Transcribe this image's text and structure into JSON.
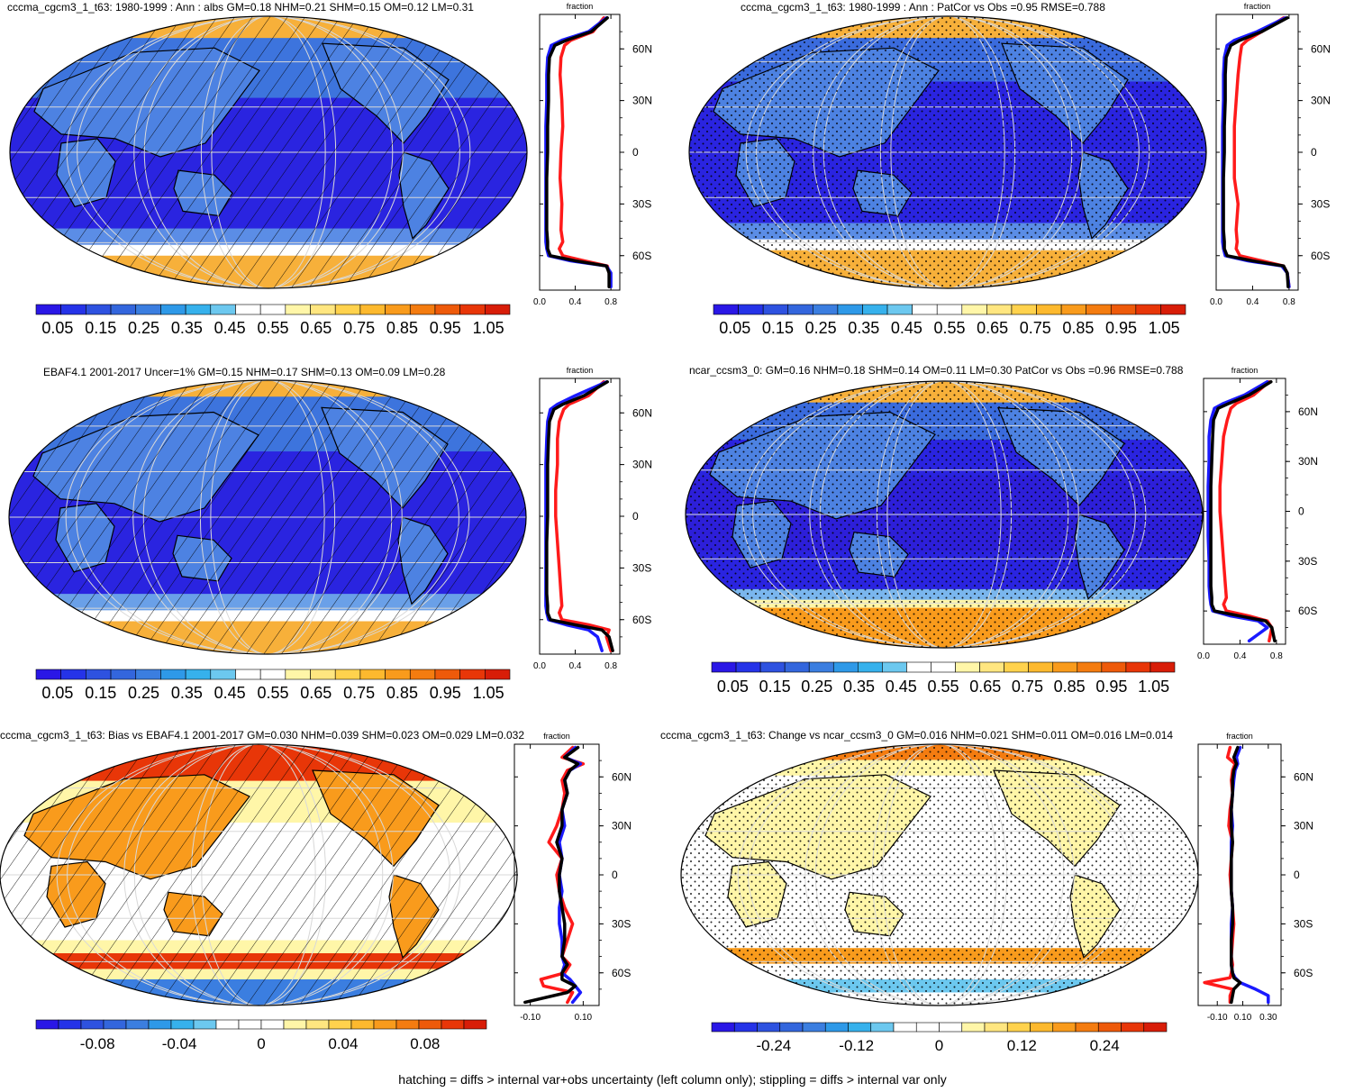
{
  "footer": "hatching = diffs > internal var+obs uncertainty (left column only); stippling = diffs > internal var only",
  "chart_data": [
    {
      "type": "heatmap",
      "title": "cccma_cgcm3_1_t63: 1980-1999 : Ann : albs GM=0.18 NHM=0.21 SHM=0.15 OM=0.12 LM=0.31",
      "pattern": "hatch",
      "colorbar": {
        "labels": [
          "0.05",
          "0.15",
          "0.25",
          "0.35",
          "0.45",
          "0.55",
          "0.65",
          "0.75",
          "0.85",
          "0.95",
          "1.05"
        ],
        "min": 0.0,
        "max": 1.1,
        "palette": "seq"
      },
      "zonal": {
        "xlabel": "fraction",
        "xticks": [
          {
            "v": 0.0,
            "l": "0.0"
          },
          {
            "v": 0.4,
            "l": "0.4"
          },
          {
            "v": 0.8,
            "l": "0.8"
          }
        ],
        "xlim": [
          0.0,
          0.9
        ],
        "yticks": [
          {
            "v": 60,
            "l": "60N"
          },
          {
            "v": 30,
            "l": "30N"
          },
          {
            "v": 0,
            "l": "0"
          },
          {
            "v": -30,
            "l": "30S"
          },
          {
            "v": -60,
            "l": "60S"
          }
        ],
        "ylim": [
          -80,
          80
        ],
        "lat": [
          78,
          70,
          65,
          62,
          55,
          45,
          30,
          15,
          0,
          -15,
          -30,
          -45,
          -52,
          -56,
          -60,
          -63,
          -66,
          -70,
          -78
        ],
        "series": [
          {
            "color": "#ff1a1a",
            "values": [
              0.72,
              0.6,
              0.35,
              0.28,
              0.24,
              0.23,
              0.25,
              0.26,
              0.24,
              0.23,
              0.25,
              0.24,
              0.26,
              0.22,
              0.26,
              0.5,
              0.76,
              0.78,
              0.79
            ]
          },
          {
            "color": "#1a1aff",
            "values": [
              0.75,
              0.55,
              0.25,
              0.13,
              0.09,
              0.08,
              0.08,
              0.07,
              0.07,
              0.07,
              0.07,
              0.07,
              0.07,
              0.08,
              0.1,
              0.35,
              0.75,
              0.8,
              0.8
            ]
          },
          {
            "color": "#000000",
            "values": [
              0.76,
              0.58,
              0.3,
              0.17,
              0.11,
              0.1,
              0.1,
              0.09,
              0.09,
              0.08,
              0.08,
              0.08,
              0.09,
              0.09,
              0.12,
              0.4,
              0.75,
              0.78,
              0.78
            ]
          }
        ]
      }
    },
    {
      "type": "heatmap",
      "title": "cccma_cgcm3_1_t63: 1980-1999 : Ann : PatCor vs Obs =0.95 RMSE=0.788",
      "pattern": "stipple",
      "colorbar": {
        "labels": [
          "0.05",
          "0.15",
          "0.25",
          "0.35",
          "0.45",
          "0.55",
          "0.65",
          "0.75",
          "0.85",
          "0.95",
          "1.05"
        ],
        "min": 0.0,
        "max": 1.1,
        "palette": "seq"
      },
      "zonal": {
        "xlabel": "fraction",
        "xticks": [
          {
            "v": 0.0,
            "l": "0.0"
          },
          {
            "v": 0.4,
            "l": "0.4"
          },
          {
            "v": 0.8,
            "l": "0.8"
          }
        ],
        "xlim": [
          0.0,
          0.9
        ],
        "yticks": [
          {
            "v": 60,
            "l": "60N"
          },
          {
            "v": 30,
            "l": "30N"
          },
          {
            "v": 0,
            "l": "0"
          },
          {
            "v": -30,
            "l": "30S"
          },
          {
            "v": -60,
            "l": "60S"
          }
        ],
        "ylim": [
          -80,
          80
        ],
        "lat": [
          78,
          70,
          65,
          62,
          55,
          45,
          30,
          15,
          0,
          -15,
          -30,
          -45,
          -52,
          -56,
          -60,
          -63,
          -66,
          -70,
          -78
        ],
        "series": [
          {
            "color": "#ff1a1a",
            "values": [
              0.74,
              0.5,
              0.34,
              0.28,
              0.26,
              0.24,
              0.22,
              0.2,
              0.2,
              0.2,
              0.24,
              0.22,
              0.23,
              0.22,
              0.26,
              0.5,
              0.74,
              0.78,
              0.8
            ]
          },
          {
            "color": "#1a1aff",
            "values": [
              0.76,
              0.45,
              0.2,
              0.12,
              0.09,
              0.08,
              0.08,
              0.07,
              0.07,
              0.07,
              0.07,
              0.07,
              0.07,
              0.08,
              0.1,
              0.35,
              0.72,
              0.78,
              0.8
            ]
          },
          {
            "color": "#000000",
            "values": [
              0.78,
              0.5,
              0.26,
              0.16,
              0.11,
              0.1,
              0.1,
              0.09,
              0.09,
              0.08,
              0.08,
              0.08,
              0.09,
              0.09,
              0.12,
              0.4,
              0.74,
              0.78,
              0.79
            ]
          }
        ]
      }
    },
    {
      "type": "heatmap",
      "title": "EBAF4.1 2001-2017 Uncer=1% GM=0.15 NHM=0.17 SHM=0.13 OM=0.09 LM=0.28",
      "pattern": "hatch",
      "colorbar": {
        "labels": [
          "0.05",
          "0.15",
          "0.25",
          "0.35",
          "0.45",
          "0.55",
          "0.65",
          "0.75",
          "0.85",
          "0.95",
          "1.05"
        ],
        "min": 0.0,
        "max": 1.1,
        "palette": "seq"
      },
      "zonal": {
        "xlabel": "fraction",
        "xticks": [
          {
            "v": 0.0,
            "l": "0.0"
          },
          {
            "v": 0.4,
            "l": "0.4"
          },
          {
            "v": 0.8,
            "l": "0.8"
          }
        ],
        "xlim": [
          0.0,
          0.9
        ],
        "yticks": [
          {
            "v": 60,
            "l": "60N"
          },
          {
            "v": 30,
            "l": "30N"
          },
          {
            "v": 0,
            "l": "0"
          },
          {
            "v": -30,
            "l": "30S"
          },
          {
            "v": -60,
            "l": "60S"
          }
        ],
        "ylim": [
          -80,
          80
        ],
        "lat": [
          78,
          70,
          65,
          62,
          55,
          45,
          30,
          15,
          0,
          -15,
          -30,
          -45,
          -52,
          -56,
          -60,
          -63,
          -66,
          -70,
          -78
        ],
        "series": [
          {
            "color": "#ff1a1a",
            "values": [
              0.72,
              0.55,
              0.33,
              0.27,
              0.22,
              0.2,
              0.2,
              0.18,
              0.18,
              0.2,
              0.22,
              0.24,
              0.25,
              0.22,
              0.25,
              0.55,
              0.78,
              0.75,
              0.8
            ]
          },
          {
            "color": "#1a1aff",
            "values": [
              0.75,
              0.4,
              0.2,
              0.12,
              0.09,
              0.08,
              0.07,
              0.07,
              0.07,
              0.07,
              0.07,
              0.07,
              0.07,
              0.08,
              0.1,
              0.3,
              0.55,
              0.65,
              0.7
            ]
          },
          {
            "color": "#000000",
            "values": [
              0.76,
              0.5,
              0.26,
              0.16,
              0.11,
              0.1,
              0.09,
              0.09,
              0.09,
              0.08,
              0.08,
              0.08,
              0.09,
              0.09,
              0.12,
              0.4,
              0.7,
              0.78,
              0.82
            ]
          }
        ]
      }
    },
    {
      "type": "heatmap",
      "title": "ncar_ccsm3_0: GM=0.16 NHM=0.18 SHM=0.14 OM=0.11 LM=0.30 PatCor vs Obs =0.96 RMSE=0.788",
      "pattern": "stipple",
      "colorbar": {
        "labels": [
          "0.05",
          "0.15",
          "0.25",
          "0.35",
          "0.45",
          "0.55",
          "0.65",
          "0.75",
          "0.85",
          "0.95",
          "1.05"
        ],
        "min": 0.0,
        "max": 1.1,
        "palette": "seq"
      },
      "zonal": {
        "xlabel": "fraction",
        "xticks": [
          {
            "v": 0.0,
            "l": "0.0"
          },
          {
            "v": 0.4,
            "l": "0.4"
          },
          {
            "v": 0.8,
            "l": "0.8"
          }
        ],
        "xlim": [
          0.0,
          0.9
        ],
        "yticks": [
          {
            "v": 60,
            "l": "60N"
          },
          {
            "v": 30,
            "l": "30N"
          },
          {
            "v": 0,
            "l": "0"
          },
          {
            "v": -30,
            "l": "30S"
          },
          {
            "v": -60,
            "l": "60S"
          }
        ],
        "ylim": [
          -80,
          80
        ],
        "lat": [
          78,
          70,
          65,
          62,
          55,
          45,
          30,
          15,
          0,
          -15,
          -30,
          -45,
          -52,
          -56,
          -60,
          -63,
          -66,
          -70,
          -78
        ],
        "series": [
          {
            "color": "#ff1a1a",
            "values": [
              0.72,
              0.55,
              0.36,
              0.3,
              0.26,
              0.22,
              0.2,
              0.18,
              0.18,
              0.2,
              0.22,
              0.24,
              0.25,
              0.22,
              0.25,
              0.5,
              0.7,
              0.75,
              0.72
            ]
          },
          {
            "color": "#1a1aff",
            "values": [
              0.7,
              0.45,
              0.22,
              0.12,
              0.08,
              0.06,
              0.06,
              0.05,
              0.05,
              0.05,
              0.06,
              0.06,
              0.07,
              0.08,
              0.1,
              0.3,
              0.6,
              0.7,
              0.5
            ]
          },
          {
            "color": "#000000",
            "values": [
              0.74,
              0.5,
              0.28,
              0.16,
              0.11,
              0.1,
              0.09,
              0.08,
              0.08,
              0.08,
              0.08,
              0.08,
              0.09,
              0.09,
              0.12,
              0.4,
              0.68,
              0.75,
              0.78
            ]
          }
        ]
      }
    },
    {
      "type": "heatmap",
      "title": "cccma_cgcm3_1_t63: Bias vs EBAF4.1 2001-2017 GM=0.030 NHM=0.039 SHM=0.023 OM=0.029 LM=0.032",
      "pattern": "hatch",
      "colorbar": {
        "labels": [
          "-0.08",
          "-0.04",
          "0",
          "0.04",
          "0.08"
        ],
        "min": -0.11,
        "max": 0.11,
        "palette": "div"
      },
      "zonal": {
        "xlabel": "fraction",
        "xticks": [
          {
            "v": -0.1,
            "l": "-0.10"
          },
          {
            "v": 0.1,
            "l": "0.10"
          }
        ],
        "xlim": [
          -0.16,
          0.16
        ],
        "yticks": [
          {
            "v": 60,
            "l": "60N"
          },
          {
            "v": 30,
            "l": "30N"
          },
          {
            "v": 0,
            "l": "0"
          },
          {
            "v": -30,
            "l": "30S"
          },
          {
            "v": -60,
            "l": "60S"
          }
        ],
        "ylim": [
          -80,
          80
        ],
        "lat": [
          78,
          72,
          68,
          64,
          58,
          50,
          40,
          30,
          20,
          10,
          0,
          -10,
          -20,
          -30,
          -40,
          -50,
          -55,
          -60,
          -64,
          -68,
          -72,
          -78
        ],
        "series": [
          {
            "color": "#ff1a1a",
            "values": [
              0.06,
              0.02,
              0.1,
              0.04,
              0.02,
              0.03,
              0.02,
              0.0,
              -0.03,
              0.02,
              0.0,
              0.01,
              0.03,
              0.06,
              0.04,
              0.02,
              0.05,
              0.03,
              -0.06,
              -0.05,
              0.06,
              0.04
            ]
          },
          {
            "color": "#1a1aff",
            "values": [
              0.07,
              0.03,
              0.09,
              0.05,
              0.03,
              0.04,
              0.02,
              0.03,
              0.01,
              0.02,
              0.01,
              0.02,
              0.01,
              0.01,
              0.02,
              0.02,
              0.03,
              0.02,
              0.05,
              0.07,
              0.09,
              0.06
            ]
          },
          {
            "color": "#000000",
            "values": [
              0.08,
              0.03,
              0.08,
              0.05,
              0.03,
              0.04,
              0.02,
              0.02,
              0.0,
              0.02,
              0.01,
              0.01,
              0.02,
              0.03,
              0.03,
              0.02,
              0.04,
              0.02,
              0.02,
              0.07,
              0.04,
              -0.12
            ]
          }
        ]
      }
    },
    {
      "type": "heatmap",
      "title": "cccma_cgcm3_1_t63: Change vs ncar_ccsm3_0 GM=0.016 NHM=0.021 SHM=0.011 OM=0.016 LM=0.014",
      "pattern": "stipple",
      "colorbar": {
        "labels": [
          "-0.24",
          "-0.12",
          "0",
          "0.12",
          "0.24"
        ],
        "min": -0.33,
        "max": 0.33,
        "palette": "div"
      },
      "zonal": {
        "xlabel": "fraction",
        "xticks": [
          {
            "v": -0.1,
            "l": "-0.10"
          },
          {
            "v": 0.1,
            "l": "0.10"
          },
          {
            "v": 0.3,
            "l": "0.30"
          }
        ],
        "xlim": [
          -0.25,
          0.4
        ],
        "yticks": [
          {
            "v": 60,
            "l": "60N"
          },
          {
            "v": 30,
            "l": "30N"
          },
          {
            "v": 0,
            "l": "0"
          },
          {
            "v": -30,
            "l": "30S"
          },
          {
            "v": -60,
            "l": "60S"
          }
        ],
        "ylim": [
          -80,
          80
        ],
        "lat": [
          78,
          72,
          68,
          64,
          58,
          50,
          40,
          30,
          20,
          10,
          0,
          -10,
          -20,
          -30,
          -40,
          -50,
          -55,
          -60,
          -63,
          -66,
          -70,
          -74,
          -78
        ],
        "series": [
          {
            "color": "#ff1a1a",
            "values": [
              0.0,
              -0.02,
              0.04,
              0.02,
              0.01,
              0.02,
              0.0,
              -0.01,
              0.02,
              0.01,
              0.0,
              0.01,
              0.02,
              0.03,
              0.02,
              0.01,
              0.02,
              0.01,
              0.0,
              -0.2,
              0.02,
              0.0,
              0.0
            ]
          },
          {
            "color": "#1a1aff",
            "values": [
              0.08,
              0.05,
              0.06,
              0.04,
              0.03,
              0.02,
              0.01,
              0.02,
              0.01,
              0.01,
              0.01,
              0.01,
              0.02,
              0.01,
              0.01,
              0.01,
              0.01,
              0.02,
              0.04,
              0.08,
              0.2,
              0.3,
              0.3
            ]
          },
          {
            "color": "#000000",
            "values": [
              0.06,
              0.03,
              0.05,
              0.03,
              0.02,
              0.02,
              0.01,
              0.01,
              0.02,
              0.01,
              0.01,
              0.01,
              0.02,
              0.02,
              0.01,
              0.01,
              0.01,
              0.02,
              0.03,
              0.08,
              0.03,
              0.02,
              0.01
            ]
          }
        ]
      }
    }
  ]
}
